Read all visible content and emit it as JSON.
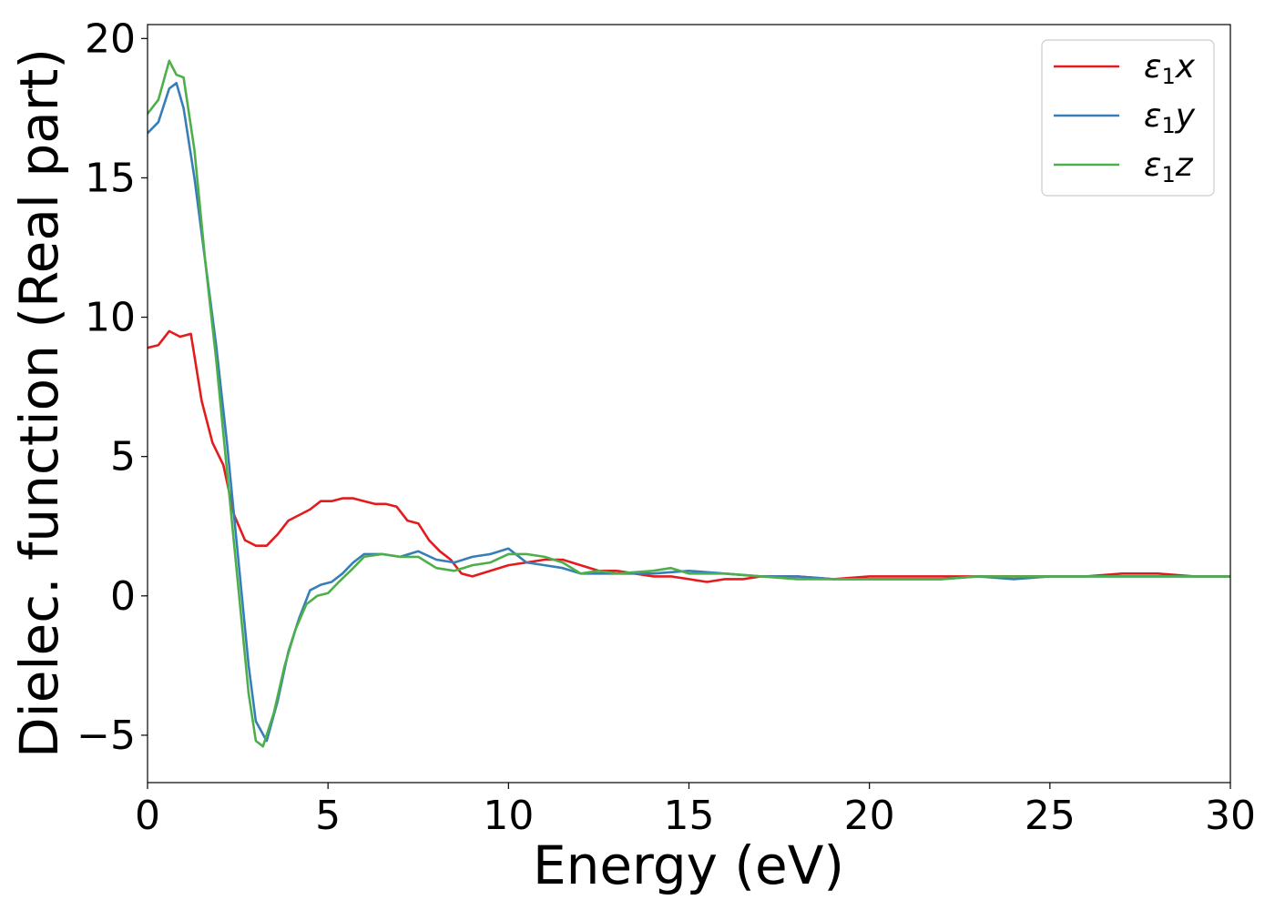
{
  "chart_data": {
    "type": "line",
    "xlabel": "Energy (eV)",
    "ylabel": "Dielec. function (Real part)",
    "xlim": [
      0,
      30
    ],
    "ylim": [
      -6.7,
      20.5
    ],
    "xticks": [
      0,
      5,
      10,
      15,
      20,
      25,
      30
    ],
    "xtick_labels": [
      "0",
      "5",
      "10",
      "15",
      "20",
      "25",
      "30"
    ],
    "yticks": [
      -5,
      0,
      5,
      10,
      15,
      20
    ],
    "ytick_labels": [
      "−5",
      "0",
      "5",
      "10",
      "15",
      "20"
    ],
    "grid": false,
    "legend_position": "top-right",
    "series": [
      {
        "name": "ε₁x",
        "legend_base": "ε",
        "legend_sub": "1",
        "legend_suffix": "x",
        "color": "#e41a1c",
        "x": [
          0,
          0.3,
          0.6,
          0.9,
          1.2,
          1.5,
          1.8,
          2.1,
          2.4,
          2.7,
          3.0,
          3.3,
          3.6,
          3.9,
          4.2,
          4.5,
          4.8,
          5.1,
          5.4,
          5.7,
          6.0,
          6.3,
          6.6,
          6.9,
          7.2,
          7.5,
          7.8,
          8.1,
          8.4,
          8.7,
          9.0,
          9.5,
          10.0,
          10.5,
          11.0,
          11.5,
          12.0,
          12.5,
          13.0,
          13.5,
          14.0,
          14.5,
          15.0,
          15.5,
          16.0,
          16.5,
          17.0,
          18.0,
          19.0,
          20.0,
          21.0,
          22.0,
          23.0,
          24.0,
          25.0,
          26.0,
          27.0,
          28.0,
          29.0,
          30.0
        ],
        "y": [
          8.9,
          9.0,
          9.5,
          9.3,
          9.4,
          7.0,
          5.5,
          4.7,
          2.9,
          2.0,
          1.8,
          1.8,
          2.2,
          2.7,
          2.9,
          3.1,
          3.4,
          3.4,
          3.5,
          3.5,
          3.4,
          3.3,
          3.3,
          3.2,
          2.7,
          2.6,
          2.0,
          1.6,
          1.3,
          0.8,
          0.7,
          0.9,
          1.1,
          1.2,
          1.3,
          1.3,
          1.1,
          0.9,
          0.9,
          0.8,
          0.7,
          0.7,
          0.6,
          0.5,
          0.6,
          0.6,
          0.7,
          0.7,
          0.6,
          0.7,
          0.7,
          0.7,
          0.7,
          0.7,
          0.7,
          0.7,
          0.8,
          0.8,
          0.7,
          0.7
        ]
      },
      {
        "name": "ε₁y",
        "legend_base": "ε",
        "legend_sub": "1",
        "legend_suffix": "y",
        "color": "#377eb8",
        "x": [
          0,
          0.3,
          0.6,
          0.8,
          1.0,
          1.3,
          1.6,
          1.9,
          2.2,
          2.5,
          2.8,
          3.0,
          3.3,
          3.6,
          3.9,
          4.2,
          4.5,
          4.8,
          5.1,
          5.4,
          5.7,
          6.0,
          6.5,
          7.0,
          7.5,
          8.0,
          8.5,
          9.0,
          9.5,
          10.0,
          10.5,
          11.0,
          11.5,
          12.0,
          12.5,
          13.0,
          14.0,
          15.0,
          16.0,
          17.0,
          18.0,
          19.0,
          20.0,
          21.0,
          22.0,
          23.0,
          24.0,
          25.0,
          26.0,
          27.0,
          28.0,
          29.0,
          30.0
        ],
        "y": [
          16.6,
          17.0,
          18.2,
          18.4,
          17.5,
          15.0,
          12.0,
          9.0,
          5.5,
          1.5,
          -2.5,
          -4.5,
          -5.2,
          -3.8,
          -2.0,
          -0.8,
          0.2,
          0.4,
          0.5,
          0.8,
          1.2,
          1.5,
          1.5,
          1.4,
          1.6,
          1.3,
          1.2,
          1.4,
          1.5,
          1.7,
          1.2,
          1.1,
          1.0,
          0.8,
          0.8,
          0.8,
          0.8,
          0.9,
          0.8,
          0.7,
          0.7,
          0.6,
          0.6,
          0.6,
          0.6,
          0.7,
          0.6,
          0.7,
          0.7,
          0.7,
          0.7,
          0.7,
          0.7
        ]
      },
      {
        "name": "ε₁z",
        "legend_base": "ε",
        "legend_sub": "1",
        "legend_suffix": "z",
        "color": "#4daf4a",
        "x": [
          0,
          0.3,
          0.6,
          0.8,
          1.0,
          1.3,
          1.6,
          1.9,
          2.2,
          2.5,
          2.8,
          3.0,
          3.2,
          3.5,
          3.8,
          4.1,
          4.4,
          4.7,
          5.0,
          5.3,
          5.7,
          6.0,
          6.5,
          7.0,
          7.5,
          8.0,
          8.5,
          9.0,
          9.5,
          10.0,
          10.5,
          11.0,
          11.5,
          12.0,
          12.5,
          13.0,
          14.0,
          14.5,
          15.0,
          16.0,
          17.0,
          18.0,
          19.0,
          20.0,
          21.0,
          22.0,
          23.0,
          24.0,
          25.0,
          26.0,
          27.0,
          28.0,
          29.0,
          30.0
        ],
        "y": [
          17.3,
          17.8,
          19.2,
          18.7,
          18.6,
          16.0,
          12.0,
          8.5,
          4.5,
          0.5,
          -3.5,
          -5.2,
          -5.4,
          -4.2,
          -2.5,
          -1.2,
          -0.3,
          0.0,
          0.1,
          0.5,
          1.0,
          1.4,
          1.5,
          1.4,
          1.4,
          1.0,
          0.9,
          1.1,
          1.2,
          1.5,
          1.5,
          1.4,
          1.2,
          0.8,
          0.9,
          0.8,
          0.9,
          1.0,
          0.8,
          0.8,
          0.7,
          0.6,
          0.6,
          0.6,
          0.6,
          0.6,
          0.7,
          0.7,
          0.7,
          0.7,
          0.7,
          0.7,
          0.7,
          0.7
        ]
      }
    ]
  }
}
